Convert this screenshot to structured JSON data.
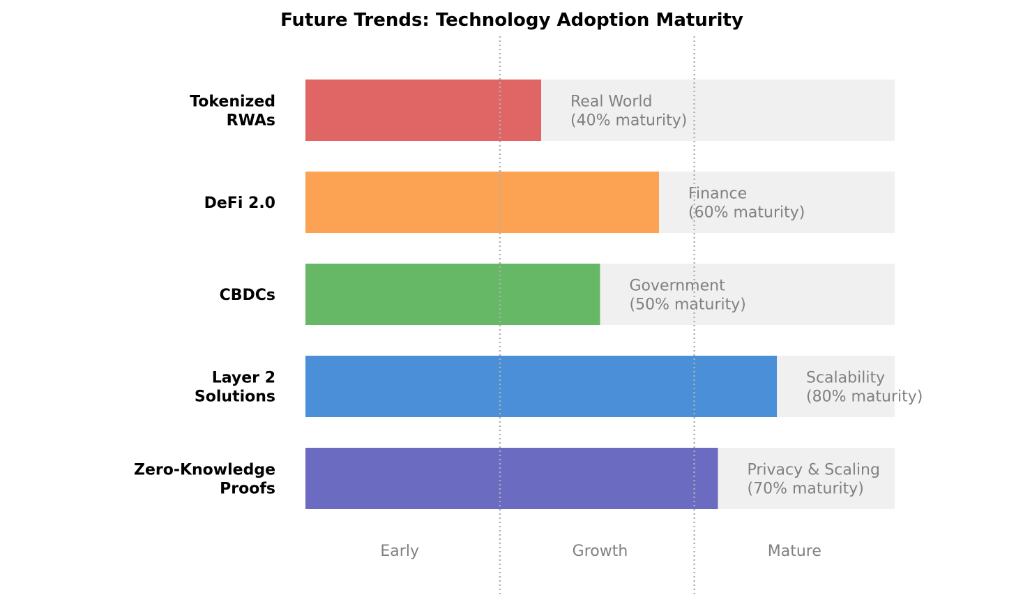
{
  "chart_data": {
    "type": "bar",
    "orientation": "horizontal",
    "title": "Future Trends: Technology Adoption Maturity",
    "xlabel": "",
    "ylabel": "",
    "xlim": [
      0,
      100
    ],
    "grid": false,
    "categories": [
      [
        "Tokenized",
        "RWAs"
      ],
      [
        "DeFi 2.0"
      ],
      [
        "CBDCs"
      ],
      [
        "Layer 2",
        "Solutions"
      ],
      [
        "Zero-Knowledge",
        "Proofs"
      ]
    ],
    "values": [
      40,
      60,
      50,
      80,
      70
    ],
    "colors": [
      "#e06666",
      "#fba353",
      "#67b866",
      "#4a8fd8",
      "#6b6bc2"
    ],
    "background_bar_color": "#f0f0f0",
    "background_bar_value": 100,
    "bar_labels": [
      [
        "Real World",
        "(40% maturity)"
      ],
      [
        "Finance",
        "(60% maturity)"
      ],
      [
        "Government",
        "(50% maturity)"
      ],
      [
        "Scalability",
        "(80% maturity)"
      ],
      [
        "Privacy & Scaling",
        "(70% maturity)"
      ]
    ],
    "stage_dividers": [
      33,
      66
    ],
    "stages": [
      {
        "label": "Early",
        "position": 16
      },
      {
        "label": "Growth",
        "position": 50
      },
      {
        "label": "Mature",
        "position": 83
      }
    ]
  }
}
